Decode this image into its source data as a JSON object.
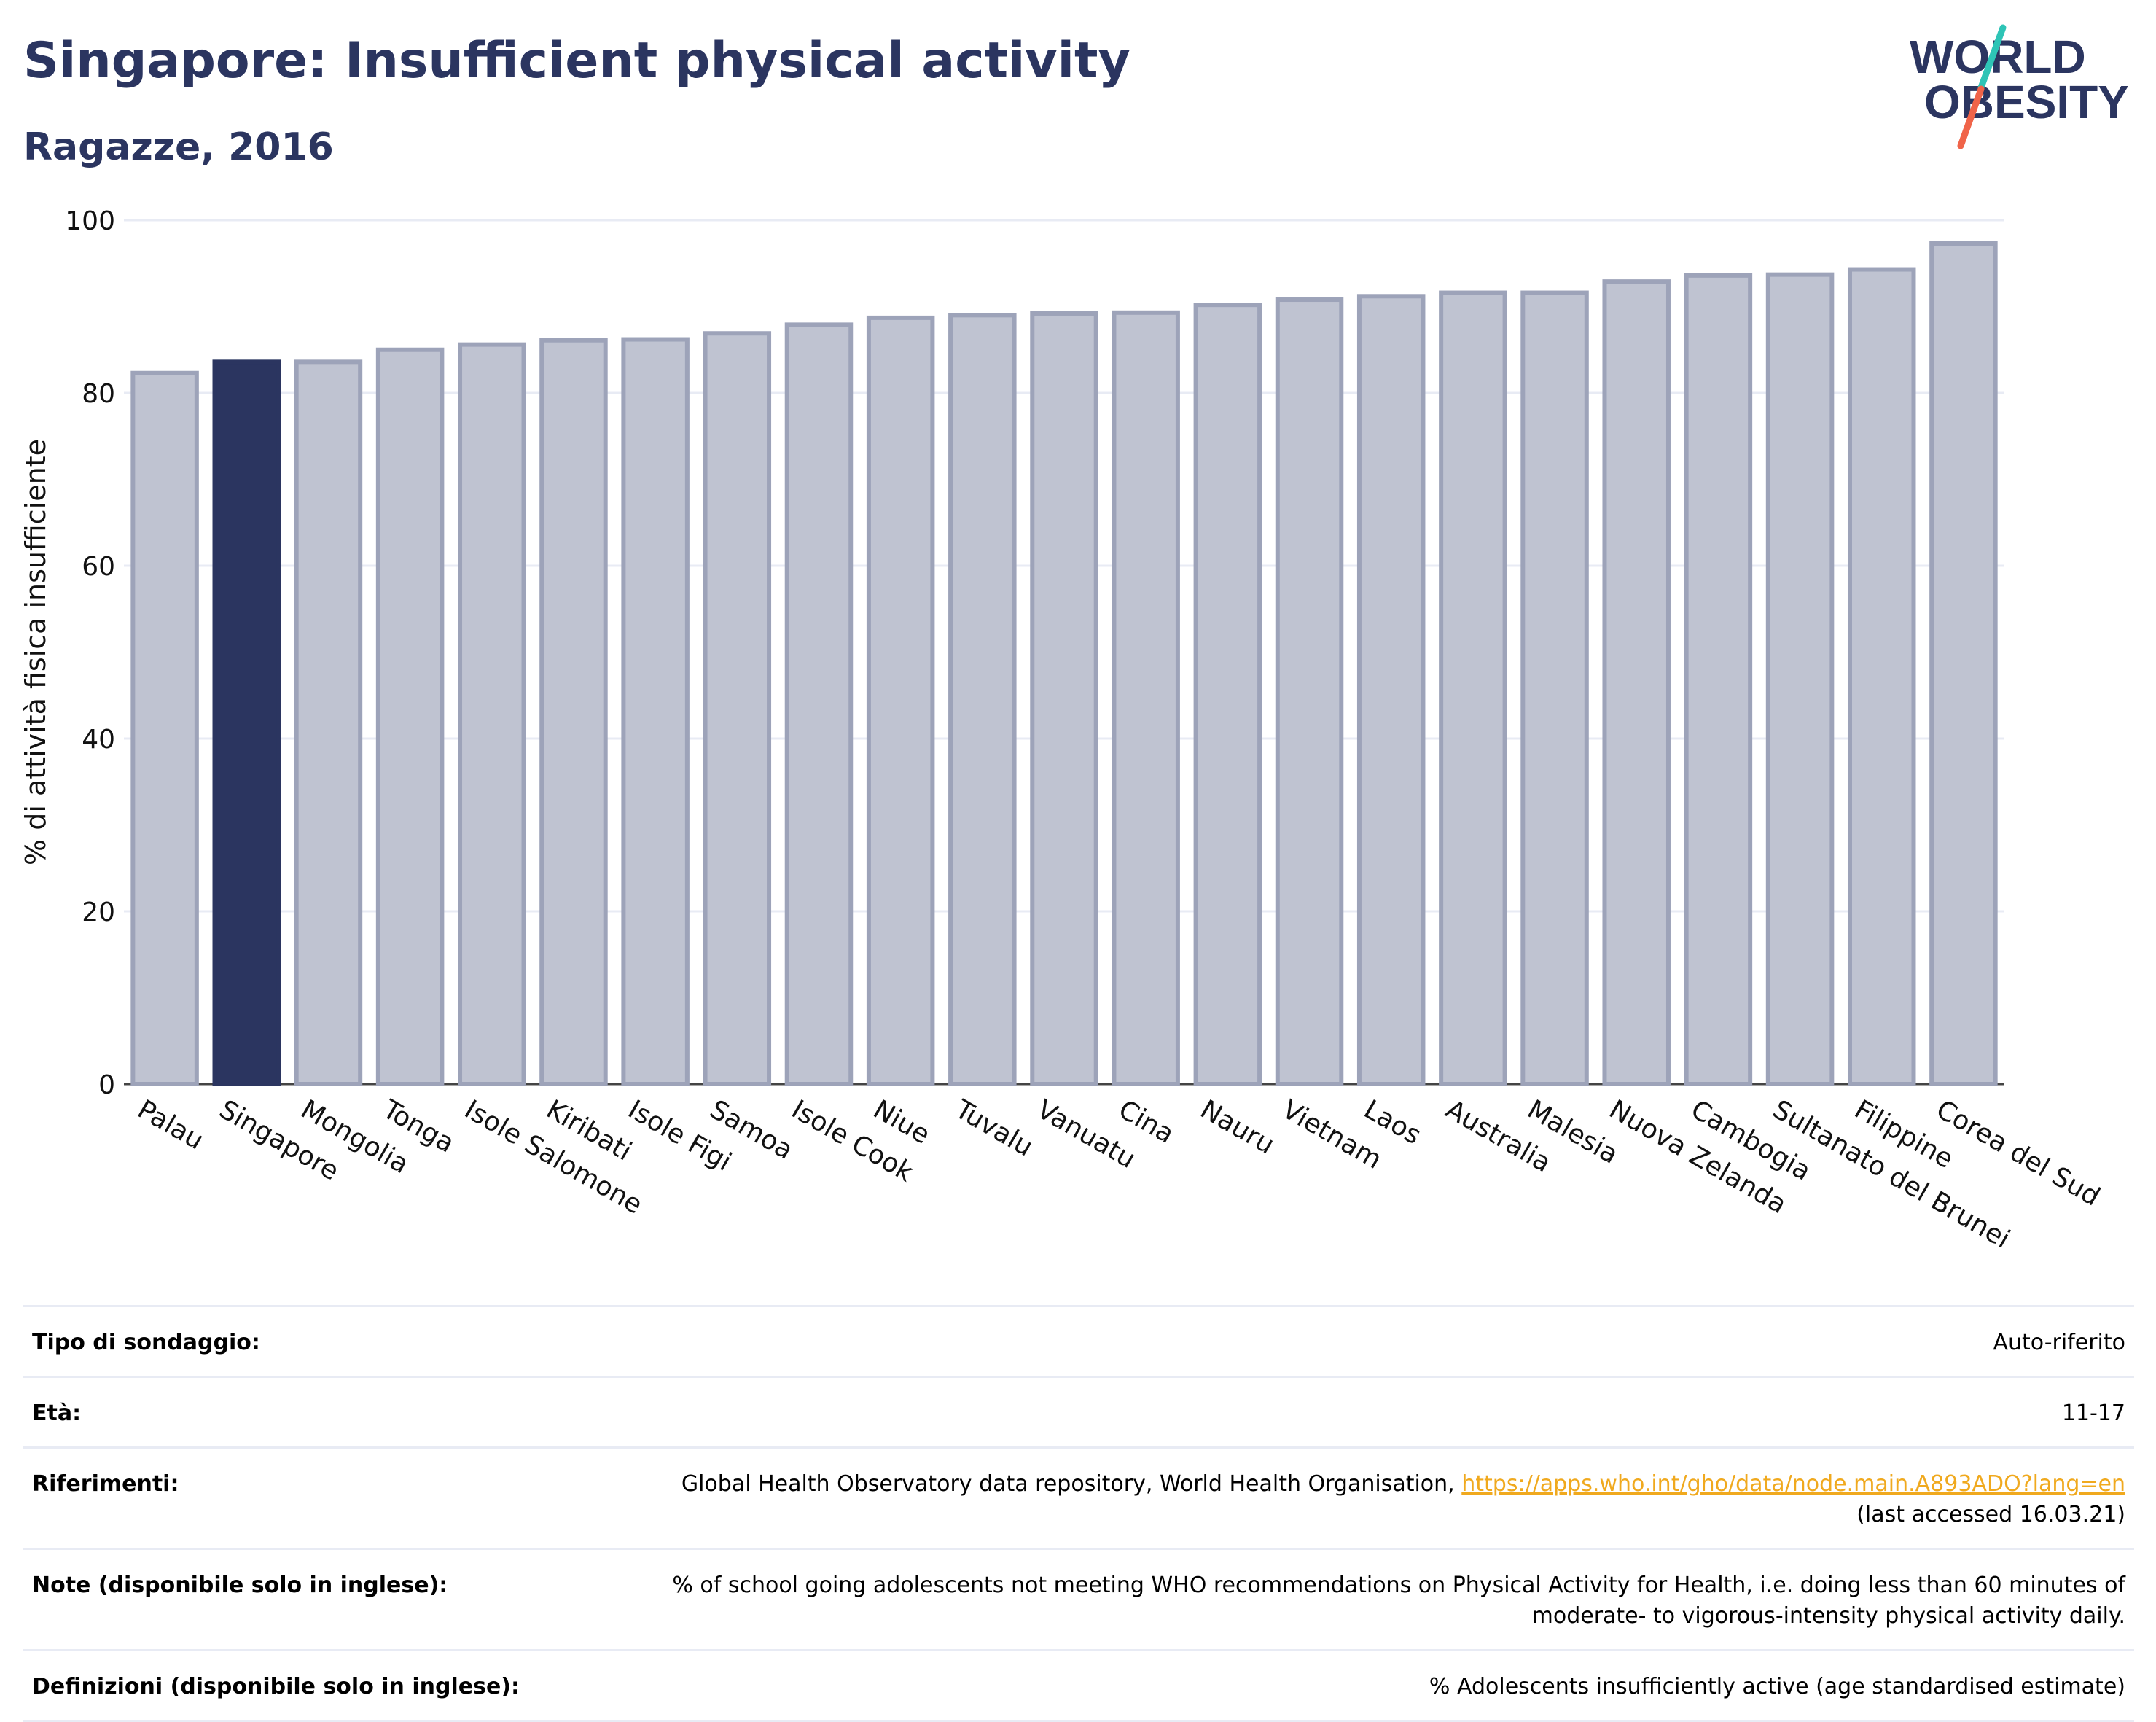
{
  "header": {
    "title": "Singapore: Insufficient physical activity",
    "subtitle": "Ragazze, 2016"
  },
  "logo": {
    "line1": "WORLD",
    "line2": "OBESITY"
  },
  "colors": {
    "highlight": "#2b3560",
    "bar_fill": "#bfc3d1",
    "bar_stroke": "#9da3b9",
    "text_dark": "#2b3560",
    "link": "#f0a91e",
    "logo_teal": "#2ec4b6",
    "logo_coral": "#f06449"
  },
  "chart_data": {
    "type": "bar",
    "title": "Singapore: Insufficient physical activity",
    "subtitle": "Ragazze, 2016",
    "xlabel": "",
    "ylabel": "% di attività fisica insufficiente",
    "ylim": [
      0,
      100
    ],
    "yticks": [
      0,
      20,
      40,
      60,
      80,
      100
    ],
    "grid": true,
    "highlight_category": "Singapore",
    "categories": [
      "Palau",
      "Singapore",
      "Mongolia",
      "Tonga",
      "Isole Salomone",
      "Kiribati",
      "Isole Figi",
      "Samoa",
      "Isole Cook",
      "Niue",
      "Tuvalu",
      "Vanuatu",
      "Cina",
      "Nauru",
      "Vietnam",
      "Laos",
      "Australia",
      "Malesia",
      "Nuova Zelanda",
      "Cambogia",
      "Sultanato del Brunei",
      "Filippine",
      "Corea del Sud"
    ],
    "values": [
      82.3,
      83.6,
      83.6,
      85.0,
      85.6,
      86.1,
      86.2,
      86.9,
      87.9,
      88.7,
      89.0,
      89.2,
      89.3,
      90.2,
      90.8,
      91.2,
      91.6,
      91.6,
      92.9,
      93.6,
      93.7,
      94.3,
      97.3
    ]
  },
  "info": [
    {
      "key": "Tipo di sondaggio:",
      "value": "Auto-riferito"
    },
    {
      "key": "Età:",
      "value": "11-17"
    },
    {
      "key": "Riferimenti:",
      "value": "Global Health Observatory data repository, World Health Organisation,",
      "link": "https://apps.who.int/gho/data/node.main.A893ADO?lang=en",
      "value_suffix": "(last accessed 16.03.21)"
    },
    {
      "key": "Note (disponibile solo in inglese):",
      "value": "% of school going adolescents not meeting WHO recommendations on Physical Activity for Health, i.e. doing less than 60 minutes of moderate- to vigorous-intensity physical activity daily."
    },
    {
      "key": "Definizioni (disponibile solo in inglese):",
      "value": "% Adolescents insufficiently active (age standardised estimate)"
    }
  ]
}
